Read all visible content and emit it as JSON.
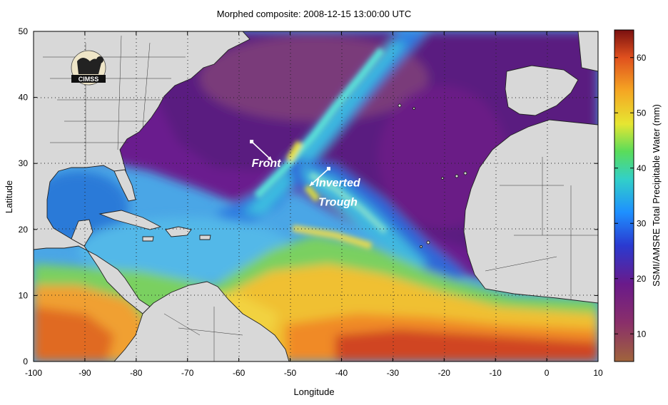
{
  "title": "Morphed composite: 2008-12-15 13:00:00 UTC",
  "x_axis": {
    "label": "Longitude",
    "range": [
      -100,
      10
    ],
    "ticks": [
      -100,
      -90,
      -80,
      -70,
      -60,
      -50,
      -40,
      -30,
      -20,
      -10,
      0,
      10
    ]
  },
  "y_axis": {
    "label": "Latitude",
    "range": [
      0,
      50
    ],
    "ticks": [
      0,
      10,
      20,
      30,
      40,
      50
    ]
  },
  "colorbar": {
    "label": "SSMI/AMSRE Total Precipitable Water (mm)",
    "range": [
      5,
      65
    ],
    "ticks": [
      10,
      20,
      30,
      40,
      50,
      60
    ],
    "stops": [
      {
        "value": 5,
        "color": "#a0643c"
      },
      {
        "value": 12,
        "color": "#8a2f6a"
      },
      {
        "value": 19,
        "color": "#6a1a8a"
      },
      {
        "value": 26,
        "color": "#2a3ad0"
      },
      {
        "value": 32,
        "color": "#1e90ff"
      },
      {
        "value": 38,
        "color": "#32d0c8"
      },
      {
        "value": 43,
        "color": "#5adc5a"
      },
      {
        "value": 48,
        "color": "#e6e632"
      },
      {
        "value": 54,
        "color": "#f5a623"
      },
      {
        "value": 60,
        "color": "#e0501e"
      },
      {
        "value": 65,
        "color": "#7a1010"
      }
    ]
  },
  "land_color": "#d8d8d8",
  "logo_text": "CIMSS",
  "annotations": [
    {
      "text": "Front",
      "lon": -57.5,
      "lat": 29.5
    },
    {
      "text": "Inverted",
      "lon": -45,
      "lat": 26.5
    },
    {
      "text": "Trough",
      "lon": -44.5,
      "lat": 23.6
    }
  ],
  "arrows": [
    {
      "name": "front-arrow",
      "from": [
        -57.5,
        33.3
      ],
      "to": [
        -53.5,
        30.4
      ]
    },
    {
      "name": "trough-arrow",
      "from": [
        -42.5,
        29.2
      ],
      "to": [
        -46.2,
        26.6
      ]
    }
  ]
}
